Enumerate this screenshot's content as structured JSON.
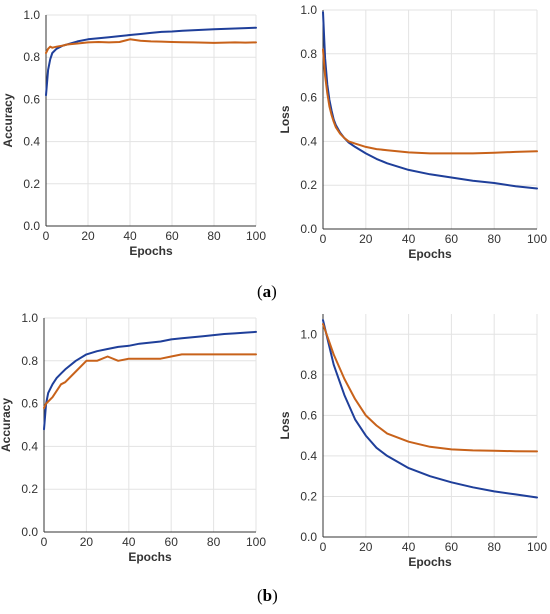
{
  "panels": [
    {
      "open": "(",
      "letter": "a",
      "close": ")"
    },
    {
      "open": "(",
      "letter": "b",
      "close": ")"
    }
  ],
  "colors": {
    "train": "#1f3f9a",
    "validation": "#c8621a",
    "grid": "#e3e3e3",
    "axis": "#333333"
  },
  "chart_data": [
    {
      "type": "line",
      "panel": "a",
      "title": "",
      "xlabel": "Epochs",
      "ylabel": "Accuracy",
      "xlim": [
        0,
        100
      ],
      "ylim": [
        0,
        1.0
      ],
      "xticks": [
        0,
        20,
        40,
        60,
        80,
        100
      ],
      "yticks": [
        0.0,
        0.2,
        0.4,
        0.6,
        0.8,
        1.0
      ],
      "xtick_labels": [
        "0",
        "20",
        "40",
        "60",
        "80",
        "100"
      ],
      "ytick_labels": [
        "0.0",
        "0.2",
        "0.4",
        "0.6",
        "0.8",
        "1.0"
      ],
      "grid": true,
      "x": [
        0,
        1,
        2,
        3,
        5,
        8,
        10,
        15,
        20,
        25,
        30,
        35,
        40,
        45,
        50,
        55,
        60,
        65,
        70,
        75,
        80,
        85,
        90,
        95,
        100
      ],
      "series": [
        {
          "values": [
            0.62,
            0.74,
            0.79,
            0.82,
            0.84,
            0.855,
            0.86,
            0.875,
            0.885,
            0.89,
            0.895,
            0.9,
            0.905,
            0.91,
            0.915,
            0.92,
            0.922,
            0.925,
            0.928,
            0.93,
            0.932,
            0.934,
            0.936,
            0.938,
            0.94
          ]
        },
        {
          "values": [
            0.82,
            0.84,
            0.85,
            0.845,
            0.85,
            0.855,
            0.86,
            0.865,
            0.87,
            0.872,
            0.87,
            0.872,
            0.885,
            0.878,
            0.875,
            0.874,
            0.872,
            0.871,
            0.87,
            0.869,
            0.868,
            0.869,
            0.87,
            0.869,
            0.87
          ]
        }
      ]
    },
    {
      "type": "line",
      "panel": "a",
      "title": "",
      "xlabel": "Epochs",
      "ylabel": "Loss",
      "xlim": [
        0,
        100
      ],
      "ylim": [
        0,
        1.0
      ],
      "xticks": [
        0,
        20,
        40,
        60,
        80,
        100
      ],
      "yticks": [
        0.0,
        0.2,
        0.4,
        0.6,
        0.8,
        1.0
      ],
      "xtick_labels": [
        "0",
        "20",
        "40",
        "60",
        "80",
        "100"
      ],
      "ytick_labels": [
        "0.0",
        "0.2",
        "0.4",
        "0.6",
        "0.8",
        "1.0"
      ],
      "grid": true,
      "x": [
        0,
        1,
        2,
        3,
        4,
        5,
        6,
        8,
        10,
        12,
        15,
        20,
        25,
        30,
        40,
        50,
        60,
        70,
        80,
        90,
        100
      ],
      "series": [
        {
          "values": [
            0.99,
            0.78,
            0.66,
            0.59,
            0.54,
            0.5,
            0.475,
            0.44,
            0.415,
            0.395,
            0.375,
            0.345,
            0.32,
            0.3,
            0.27,
            0.25,
            0.235,
            0.22,
            0.21,
            0.195,
            0.185
          ]
        },
        {
          "values": [
            0.82,
            0.7,
            0.62,
            0.56,
            0.52,
            0.49,
            0.465,
            0.435,
            0.415,
            0.4,
            0.39,
            0.375,
            0.365,
            0.36,
            0.35,
            0.345,
            0.345,
            0.345,
            0.348,
            0.352,
            0.355
          ]
        }
      ]
    },
    {
      "type": "line",
      "panel": "b",
      "title": "",
      "xlabel": "Epochs",
      "ylabel": "Accuracy",
      "xlim": [
        0,
        100
      ],
      "ylim": [
        0,
        1.0
      ],
      "xticks": [
        0,
        20,
        40,
        60,
        80,
        100
      ],
      "yticks": [
        0.0,
        0.2,
        0.4,
        0.6,
        0.8,
        1.0
      ],
      "xtick_labels": [
        "0",
        "20",
        "40",
        "60",
        "80",
        "100"
      ],
      "ytick_labels": [
        "0.0",
        "0.2",
        "0.4",
        "0.6",
        "0.8",
        "1.0"
      ],
      "grid": true,
      "x": [
        0,
        1,
        2,
        4,
        6,
        8,
        10,
        15,
        20,
        25,
        30,
        35,
        40,
        45,
        50,
        55,
        60,
        65,
        70,
        75,
        80,
        85,
        90,
        95,
        100
      ],
      "series": [
        {
          "values": [
            0.48,
            0.6,
            0.65,
            0.69,
            0.72,
            0.74,
            0.76,
            0.8,
            0.83,
            0.845,
            0.855,
            0.865,
            0.87,
            0.88,
            0.885,
            0.89,
            0.9,
            0.905,
            0.91,
            0.915,
            0.92,
            0.925,
            0.928,
            0.932,
            0.935
          ]
        },
        {
          "values": [
            0.58,
            0.6,
            0.61,
            0.63,
            0.66,
            0.69,
            0.7,
            0.75,
            0.8,
            0.8,
            0.82,
            0.8,
            0.81,
            0.81,
            0.81,
            0.81,
            0.82,
            0.83,
            0.83,
            0.83,
            0.83,
            0.83,
            0.83,
            0.83,
            0.83
          ]
        }
      ]
    },
    {
      "type": "line",
      "panel": "b",
      "title": "",
      "xlabel": "Epochs",
      "ylabel": "Loss",
      "xlim": [
        0,
        100
      ],
      "ylim": [
        0,
        1.1
      ],
      "xticks": [
        0,
        20,
        40,
        60,
        80,
        100
      ],
      "yticks": [
        0.0,
        0.2,
        0.4,
        0.6,
        0.8,
        1.0
      ],
      "xtick_labels": [
        "0",
        "20",
        "40",
        "60",
        "80",
        "100"
      ],
      "ytick_labels": [
        "0.0",
        "0.2",
        "0.4",
        "0.6",
        "0.8",
        "1.0"
      ],
      "grid": true,
      "x": [
        0,
        5,
        10,
        15,
        20,
        25,
        30,
        40,
        50,
        60,
        70,
        80,
        90,
        100
      ],
      "series": [
        {
          "values": [
            1.07,
            0.85,
            0.7,
            0.58,
            0.5,
            0.44,
            0.4,
            0.34,
            0.3,
            0.27,
            0.245,
            0.225,
            0.21,
            0.195
          ]
        },
        {
          "values": [
            1.05,
            0.9,
            0.78,
            0.68,
            0.6,
            0.55,
            0.51,
            0.47,
            0.445,
            0.432,
            0.427,
            0.425,
            0.423,
            0.422
          ]
        }
      ]
    }
  ]
}
